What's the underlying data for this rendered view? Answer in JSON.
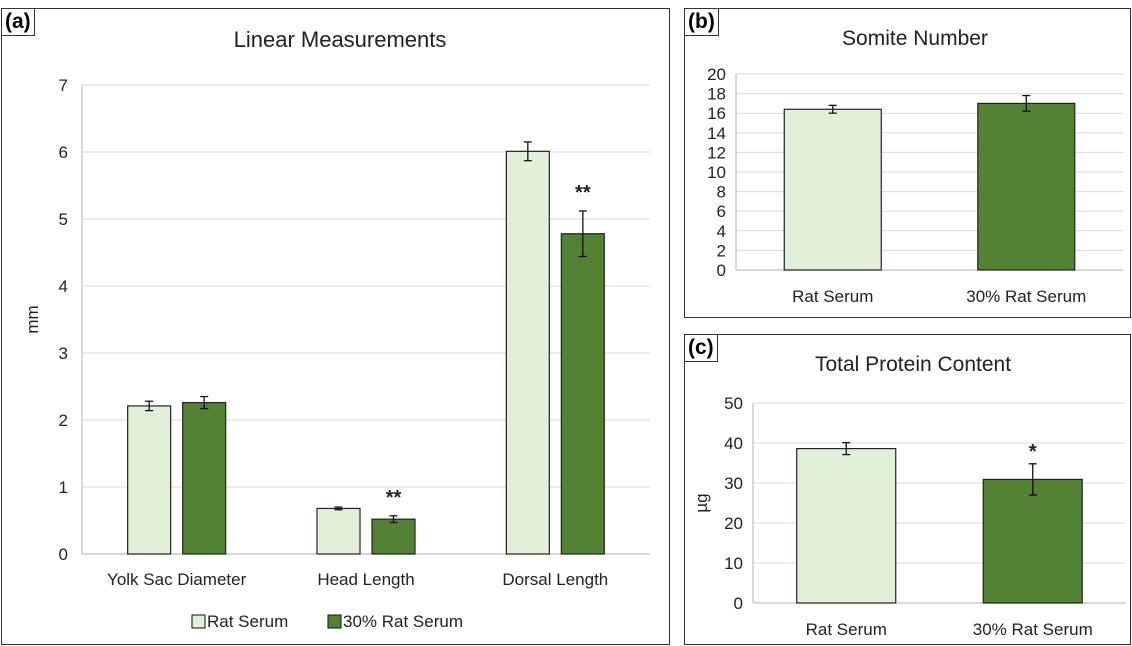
{
  "chart_data": [
    {
      "type": "bar",
      "panel_label": "(a)",
      "title": "Linear Measurements",
      "ylabel": "mm",
      "xlabel": "",
      "ylim": [
        0,
        7
      ],
      "yticks": [
        0,
        1,
        2,
        3,
        4,
        5,
        6,
        7
      ],
      "categories": [
        "Yolk Sac Diameter",
        "Head Length",
        "Dorsal Length"
      ],
      "series": [
        {
          "name": "Rat Serum",
          "color": "#e2f0d9",
          "values": [
            2.21,
            0.68,
            6.01
          ],
          "errors": [
            0.07,
            0.02,
            0.14
          ]
        },
        {
          "name": "30% Rat Serum",
          "color": "#548235",
          "values": [
            2.26,
            0.52,
            4.78
          ],
          "errors": [
            0.09,
            0.05,
            0.34
          ]
        }
      ],
      "annotations": [
        {
          "category": 1,
          "series": 1,
          "text": "**"
        },
        {
          "category": 2,
          "series": 1,
          "text": "**"
        }
      ],
      "grid": true,
      "legend": "bottom"
    },
    {
      "type": "bar",
      "panel_label": "(b)",
      "title": "Somite Number",
      "ylabel": "",
      "xlabel": "",
      "ylim": [
        0,
        20
      ],
      "yticks": [
        0,
        2,
        4,
        6,
        8,
        10,
        12,
        14,
        16,
        18,
        20
      ],
      "categories": [
        "Rat Serum",
        "30% Rat Serum"
      ],
      "values": [
        16.4,
        17.0
      ],
      "errors": [
        0.4,
        0.8
      ],
      "colors": [
        "#e2f0d9",
        "#548235"
      ],
      "annotations": [],
      "grid": true
    },
    {
      "type": "bar",
      "panel_label": "(c)",
      "title": "Total Protein Content",
      "ylabel": "µg",
      "xlabel": "",
      "ylim": [
        0,
        50
      ],
      "yticks": [
        0,
        10,
        20,
        30,
        40,
        50
      ],
      "categories": [
        "Rat Serum",
        "30% Rat Serum"
      ],
      "values": [
        38.6,
        30.9
      ],
      "errors": [
        1.5,
        3.9
      ],
      "colors": [
        "#e2f0d9",
        "#548235"
      ],
      "annotations": [
        {
          "category": 1,
          "text": "*"
        }
      ],
      "grid": true
    }
  ]
}
